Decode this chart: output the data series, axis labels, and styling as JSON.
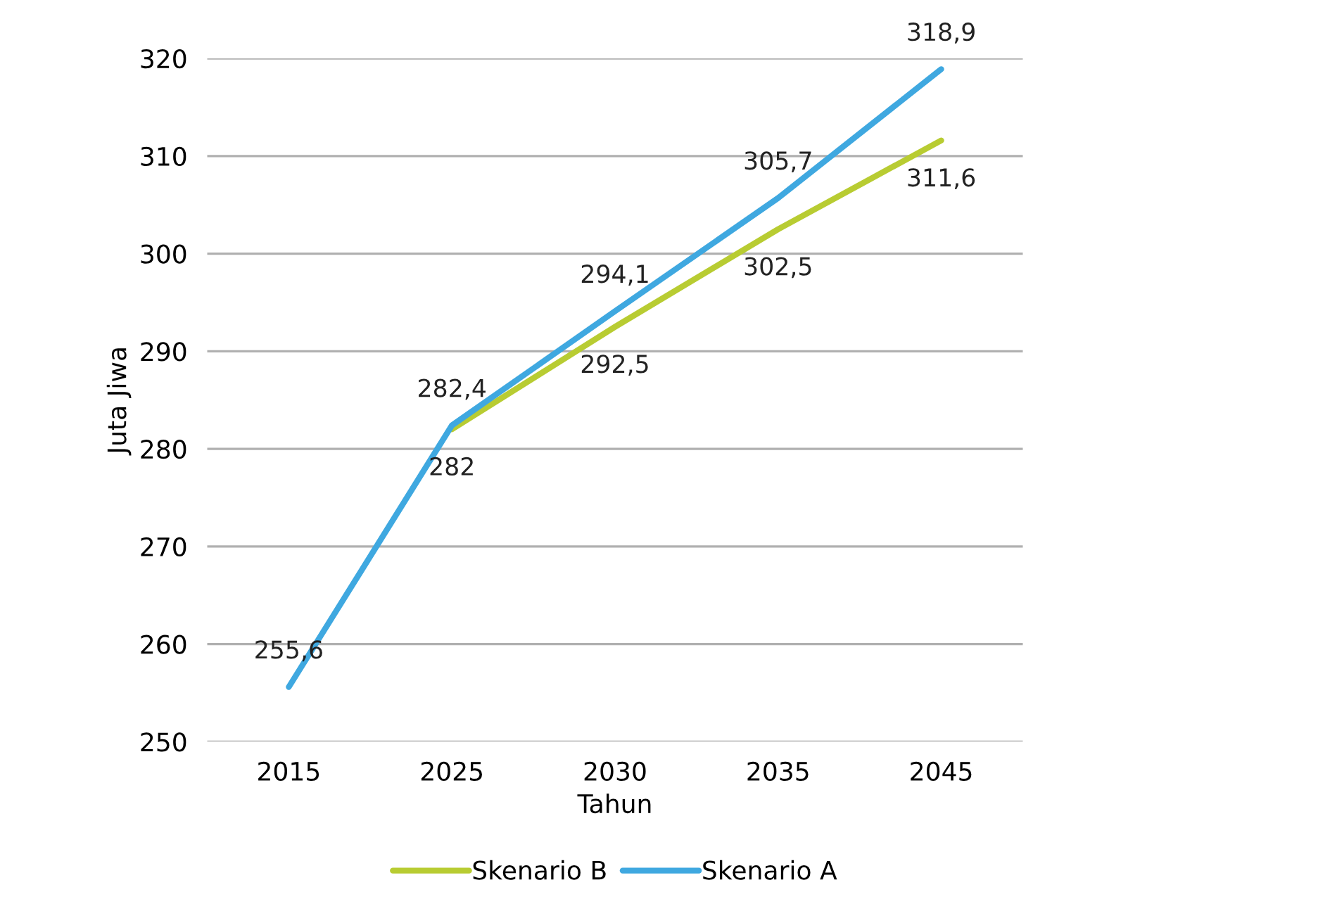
{
  "chart_data": {
    "type": "line",
    "xlabel": "Tahun",
    "ylabel": "Juta Jiwa",
    "categories": [
      "2015",
      "2025",
      "2030",
      "2035",
      "2045"
    ],
    "series": [
      {
        "name": "Skenario B",
        "color": "#b8cc32",
        "values": [
          null,
          282,
          292.5,
          302.5,
          311.6
        ],
        "value_labels": [
          null,
          "282",
          "292,5",
          "302,5",
          "311,6"
        ]
      },
      {
        "name": "Skenario A",
        "color": "#3fa8e0",
        "values": [
          255.6,
          282.4,
          294.1,
          305.7,
          318.9
        ],
        "value_labels": [
          "255,6",
          "282,4",
          "294,1",
          "305,7",
          "318,9"
        ]
      }
    ],
    "ylim": [
      250,
      320
    ],
    "yticks": [
      250,
      260,
      270,
      280,
      290,
      300,
      310,
      320
    ],
    "grid": "y",
    "legend": "bottom",
    "marker": "none",
    "line_style": "solid"
  }
}
